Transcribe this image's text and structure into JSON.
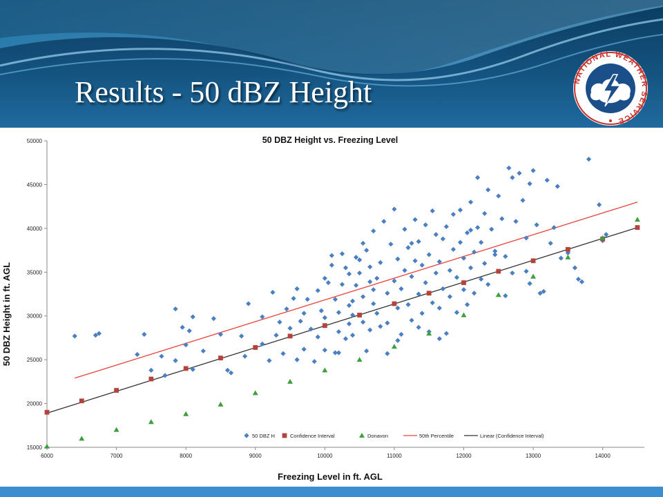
{
  "slide": {
    "title": "Results  -  50 dBZ Height",
    "logo": "national-weather-service-logo",
    "logo_text": "NATIONAL WEATHER SERVICE"
  },
  "colors": {
    "header_dark": "#0f3f63",
    "header_mid": "#1d5f8e",
    "footer": "#3b8fd1",
    "scatter": "#4a7fc1",
    "confidence": "#b5433b",
    "donavon": "#3f9f3f",
    "percentile": "#e8413c",
    "linear": "#333333"
  },
  "chart_data": {
    "type": "scatter",
    "title": "50 DBZ Height vs. Freezing Level",
    "xlabel": "Freezing Level in ft. AGL",
    "ylabel": "50 DBZ  Height in ft. AGL",
    "xlim": [
      6000,
      14600
    ],
    "ylim": [
      15000,
      50000
    ],
    "x_ticks": [
      6000,
      7000,
      8000,
      9000,
      10000,
      11000,
      12000,
      13000,
      14000
    ],
    "y_ticks": [
      15000,
      20000,
      25000,
      30000,
      35000,
      40000,
      45000,
      50000
    ],
    "grid": false,
    "legend": "bottom-right",
    "series": [
      {
        "name": "50 DBZ H",
        "marker": "diamond",
        "points": [
          [
            6400,
            27700
          ],
          [
            6700,
            27800
          ],
          [
            6750,
            28000
          ],
          [
            7300,
            25600
          ],
          [
            7400,
            27900
          ],
          [
            7500,
            23800
          ],
          [
            7650,
            25400
          ],
          [
            7700,
            23200
          ],
          [
            7850,
            24900
          ],
          [
            7850,
            30800
          ],
          [
            7950,
            28700
          ],
          [
            8000,
            26700
          ],
          [
            8050,
            28300
          ],
          [
            8100,
            29900
          ],
          [
            8100,
            23900
          ],
          [
            8250,
            26000
          ],
          [
            8400,
            29700
          ],
          [
            8500,
            27900
          ],
          [
            8600,
            23800
          ],
          [
            8650,
            23500
          ],
          [
            8800,
            27700
          ],
          [
            8850,
            25400
          ],
          [
            8900,
            31400
          ],
          [
            9000,
            26400
          ],
          [
            9100,
            29900
          ],
          [
            9100,
            26800
          ],
          [
            9250,
            32700
          ],
          [
            9300,
            27800
          ],
          [
            9350,
            29300
          ],
          [
            9400,
            25700
          ],
          [
            9450,
            30800
          ],
          [
            9500,
            28600
          ],
          [
            9550,
            32000
          ],
          [
            9600,
            33100
          ],
          [
            9600,
            25000
          ],
          [
            9650,
            29400
          ],
          [
            9700,
            26200
          ],
          [
            9700,
            30300
          ],
          [
            9750,
            31900
          ],
          [
            9800,
            28500
          ],
          [
            9850,
            24800
          ],
          [
            9900,
            27600
          ],
          [
            9900,
            32900
          ],
          [
            9950,
            30600
          ],
          [
            10000,
            29800
          ],
          [
            10000,
            34300
          ],
          [
            10050,
            33800
          ],
          [
            10100,
            35800
          ],
          [
            10100,
            36900
          ],
          [
            10150,
            31900
          ],
          [
            10150,
            25800
          ],
          [
            10200,
            30400
          ],
          [
            10200,
            28200
          ],
          [
            10250,
            33600
          ],
          [
            10250,
            37100
          ],
          [
            10300,
            35500
          ],
          [
            10300,
            27400
          ],
          [
            10350,
            29100
          ],
          [
            10350,
            34800
          ],
          [
            10400,
            31700
          ],
          [
            10400,
            27800
          ],
          [
            10450,
            33500
          ],
          [
            10450,
            36700
          ],
          [
            10500,
            30100
          ],
          [
            10500,
            34900
          ],
          [
            10550,
            29300
          ],
          [
            10550,
            32200
          ],
          [
            10600,
            37500
          ],
          [
            10600,
            26000
          ],
          [
            10650,
            35600
          ],
          [
            10650,
            28400
          ],
          [
            10700,
            33000
          ],
          [
            10700,
            31400
          ],
          [
            10700,
            39700
          ],
          [
            10750,
            30300
          ],
          [
            10750,
            34300
          ],
          [
            10800,
            36100
          ],
          [
            10800,
            28800
          ],
          [
            10850,
            40800
          ],
          [
            10900,
            32600
          ],
          [
            10900,
            29200
          ],
          [
            10950,
            38200
          ],
          [
            11000,
            34000
          ],
          [
            11000,
            42200
          ],
          [
            11050,
            30900
          ],
          [
            11050,
            36500
          ],
          [
            11100,
            27900
          ],
          [
            11100,
            33100
          ],
          [
            11150,
            35200
          ],
          [
            11150,
            39900
          ],
          [
            11200,
            31300
          ],
          [
            11200,
            37800
          ],
          [
            11250,
            29500
          ],
          [
            11250,
            34500
          ],
          [
            11300,
            41000
          ],
          [
            11300,
            36300
          ],
          [
            11350,
            32500
          ],
          [
            11350,
            38500
          ],
          [
            11400,
            30300
          ],
          [
            11400,
            35800
          ],
          [
            11450,
            33800
          ],
          [
            11450,
            40400
          ],
          [
            11500,
            28200
          ],
          [
            11500,
            37000
          ],
          [
            11550,
            31500
          ],
          [
            11550,
            42000
          ],
          [
            11600,
            34900
          ],
          [
            11600,
            39300
          ],
          [
            11650,
            30900
          ],
          [
            11650,
            36200
          ],
          [
            11700,
            33100
          ],
          [
            11700,
            38800
          ],
          [
            11750,
            40200
          ],
          [
            11750,
            28000
          ],
          [
            11800,
            35200
          ],
          [
            11800,
            32200
          ],
          [
            11850,
            41600
          ],
          [
            11850,
            37600
          ],
          [
            11900,
            34400
          ],
          [
            11900,
            30400
          ],
          [
            11950,
            38400
          ],
          [
            11950,
            42100
          ],
          [
            12000,
            33000
          ],
          [
            12000,
            36600
          ],
          [
            12050,
            39500
          ],
          [
            12050,
            31300
          ],
          [
            12100,
            35500
          ],
          [
            12100,
            43000
          ],
          [
            12150,
            37300
          ],
          [
            12150,
            32600
          ],
          [
            12200,
            40100
          ],
          [
            12200,
            45800
          ],
          [
            12250,
            34200
          ],
          [
            12250,
            38400
          ],
          [
            12300,
            41700
          ],
          [
            12300,
            36000
          ],
          [
            12350,
            33600
          ],
          [
            12350,
            44400
          ],
          [
            12400,
            39900
          ],
          [
            12450,
            37400
          ],
          [
            12500,
            43700
          ],
          [
            12550,
            41100
          ],
          [
            12600,
            36800
          ],
          [
            12650,
            46900
          ],
          [
            12700,
            45800
          ],
          [
            12750,
            40800
          ],
          [
            12800,
            46300
          ],
          [
            12850,
            43200
          ],
          [
            12900,
            38900
          ],
          [
            12950,
            45100
          ],
          [
            13000,
            46600
          ],
          [
            13050,
            40400
          ],
          [
            13100,
            32600
          ],
          [
            13150,
            32800
          ],
          [
            13200,
            45500
          ],
          [
            13250,
            38300
          ],
          [
            13300,
            40100
          ],
          [
            13350,
            44800
          ],
          [
            13400,
            36600
          ],
          [
            13500,
            37200
          ],
          [
            13600,
            35500
          ],
          [
            13650,
            34200
          ],
          [
            13700,
            33900
          ],
          [
            13800,
            47900
          ],
          [
            13950,
            42700
          ],
          [
            14000,
            38600
          ],
          [
            14050,
            39300
          ],
          [
            10400,
            30100
          ],
          [
            10900,
            25700
          ],
          [
            11050,
            27200
          ],
          [
            10200,
            25800
          ],
          [
            10000,
            26100
          ],
          [
            9200,
            24900
          ],
          [
            12600,
            32300
          ],
          [
            12700,
            34900
          ],
          [
            12900,
            35100
          ],
          [
            12950,
            33700
          ],
          [
            10550,
            38300
          ],
          [
            10350,
            31200
          ],
          [
            10650,
            33900
          ],
          [
            11650,
            27400
          ],
          [
            11350,
            28700
          ],
          [
            12450,
            37000
          ],
          [
            12100,
            39800
          ],
          [
            11250,
            38300
          ],
          [
            10500,
            36400
          ]
        ]
      },
      {
        "name": "Confidence Interval",
        "marker": "square",
        "points": [
          [
            6000,
            19000
          ],
          [
            6500,
            20300
          ],
          [
            7000,
            21500
          ],
          [
            7500,
            22800
          ],
          [
            8000,
            24000
          ],
          [
            8500,
            25200
          ],
          [
            9000,
            26400
          ],
          [
            9500,
            27700
          ],
          [
            10000,
            28900
          ],
          [
            10500,
            30100
          ],
          [
            11000,
            31400
          ],
          [
            11500,
            32600
          ],
          [
            12000,
            33800
          ],
          [
            12500,
            35100
          ],
          [
            13000,
            36300
          ],
          [
            13500,
            37600
          ],
          [
            14000,
            38800
          ],
          [
            14500,
            40100
          ]
        ]
      },
      {
        "name": "Donavon",
        "marker": "triangle",
        "points": [
          [
            6000,
            15100
          ],
          [
            6500,
            16000
          ],
          [
            7000,
            17000
          ],
          [
            7500,
            17900
          ],
          [
            8000,
            18800
          ],
          [
            8500,
            19900
          ],
          [
            9000,
            21200
          ],
          [
            9500,
            22500
          ],
          [
            10000,
            23800
          ],
          [
            10500,
            25000
          ],
          [
            11000,
            26500
          ],
          [
            11500,
            28000
          ],
          [
            12000,
            30100
          ],
          [
            12500,
            32400
          ],
          [
            13000,
            34500
          ],
          [
            13500,
            36700
          ],
          [
            14000,
            38900
          ],
          [
            14500,
            41000
          ]
        ]
      },
      {
        "name": "50th Percentile",
        "type": "line",
        "points": [
          [
            6400,
            22900
          ],
          [
            14500,
            43000
          ]
        ]
      },
      {
        "name": "Linear (Confidence Interval)",
        "type": "line",
        "points": [
          [
            6000,
            18900
          ],
          [
            14500,
            40100
          ]
        ]
      }
    ]
  }
}
